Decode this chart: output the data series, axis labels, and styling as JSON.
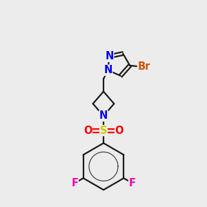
{
  "bg_color": "#ececec",
  "bond_color": "#1a1a1a",
  "bond_width": 1.6,
  "atom_colors": {
    "N": "#0000ee",
    "Br": "#cc5500",
    "F": "#ff00aa",
    "S": "#cccc00",
    "O": "#ff0000",
    "C": "#1a1a1a"
  },
  "font_size_atom": 10.5
}
